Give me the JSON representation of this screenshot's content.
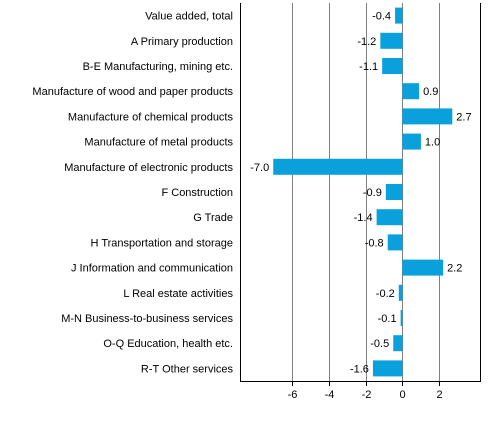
{
  "chart_data": {
    "type": "bar",
    "orientation": "horizontal",
    "title": "",
    "xlabel": "",
    "ylabel": "",
    "categories": [
      "Value added, total",
      "A Primary production",
      "B-E Manufacturing, mining etc.",
      "Manufacture of wood and paper products",
      "Manufacture of chemical products",
      "Manufacture of metal products",
      "Manufacture of electronic products",
      "F Construction",
      "G Trade",
      "H Transportation and storage",
      "J Information and communication",
      "L Real estate activities",
      "M-N Business-to-business services",
      "O-Q Education, health etc.",
      "R-T Other services"
    ],
    "values": [
      -0.4,
      -1.2,
      -1.1,
      0.9,
      2.7,
      1.0,
      -7.0,
      -0.9,
      -1.4,
      -0.8,
      2.2,
      -0.2,
      -0.1,
      -0.5,
      -1.6
    ],
    "value_labels": [
      "-0.4",
      "-1.2",
      "-1.1",
      "0.9",
      "2.7",
      "1.0",
      "-7.0",
      "-0.9",
      "-1.4",
      "-0.8",
      "2.2",
      "-0.2",
      "-0.1",
      "-0.5",
      "-1.6"
    ],
    "xlim": [
      -8.8,
      4.2
    ],
    "xticks": [
      -6,
      -4,
      -2,
      0,
      2
    ],
    "xtick_labels": [
      "-6",
      "-4",
      "-2",
      "0",
      "2"
    ],
    "grid": "vertical",
    "legend": "none",
    "bar_color": "#0aa0dc",
    "grid_color": "#808080",
    "axis_color": "#000000"
  }
}
